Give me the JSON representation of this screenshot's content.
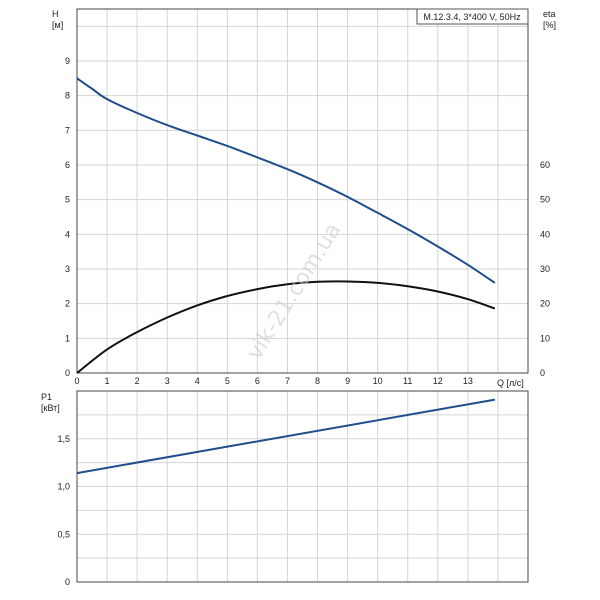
{
  "chart_data": [
    {
      "type": "line",
      "legend_text": "M.12.3.4, 3*400 V, 50Hz",
      "legend_position": "top-right",
      "grid": true,
      "x_axis": {
        "label": "Q [л/с]",
        "range": [
          0,
          15
        ],
        "ticks": [
          0,
          1,
          2,
          3,
          4,
          5,
          6,
          7,
          8,
          9,
          10,
          11,
          12,
          13
        ]
      },
      "y_left": {
        "label_line1": "H",
        "label_line2": "[м]",
        "range": [
          0,
          10.5
        ],
        "ticks": [
          0,
          1,
          2,
          3,
          4,
          5,
          6,
          7,
          8,
          9
        ]
      },
      "y_right": {
        "label_line1": "eta",
        "label_line2": "[%]",
        "range": [
          0,
          105
        ],
        "ticks": [
          0,
          10,
          20,
          30,
          40,
          50,
          60
        ]
      },
      "series": [
        {
          "key": "head",
          "axis": "left",
          "color": "#1f4e8c",
          "x": [
            0,
            0.5,
            1,
            2,
            3,
            4,
            5,
            6,
            7,
            8,
            9,
            10,
            11,
            12,
            13,
            13.9
          ],
          "y": [
            8.5,
            8.2,
            7.9,
            7.5,
            7.15,
            6.85,
            6.55,
            6.22,
            5.88,
            5.5,
            5.08,
            4.62,
            4.15,
            3.65,
            3.12,
            2.6
          ]
        },
        {
          "key": "efficiency",
          "axis": "right",
          "color": "#111111",
          "x": [
            0,
            1,
            2,
            3,
            4,
            5,
            6,
            7,
            8,
            9,
            10,
            11,
            12,
            13,
            13.9
          ],
          "y": [
            0,
            6.8,
            11.8,
            16,
            19.5,
            22.2,
            24.2,
            25.6,
            26.3,
            26.4,
            26.0,
            25.0,
            23.5,
            21.3,
            18.6
          ]
        }
      ]
    },
    {
      "type": "line",
      "grid": true,
      "x_axis": {
        "range": [
          0,
          15
        ]
      },
      "y_left": {
        "label_line1": "P1",
        "label_line2": "[кВт]",
        "range": [
          0,
          2.0
        ],
        "ticks": [
          0,
          0.5,
          1.0,
          1.5
        ],
        "tick_labels": [
          "0",
          "0,5",
          "1,0",
          "1,5"
        ]
      },
      "series": [
        {
          "key": "power",
          "axis": "left",
          "color": "#1f4e8c",
          "x": [
            0,
            13.9
          ],
          "y": [
            1.14,
            1.91
          ]
        }
      ]
    }
  ],
  "watermark": "vik-21.com.ua"
}
